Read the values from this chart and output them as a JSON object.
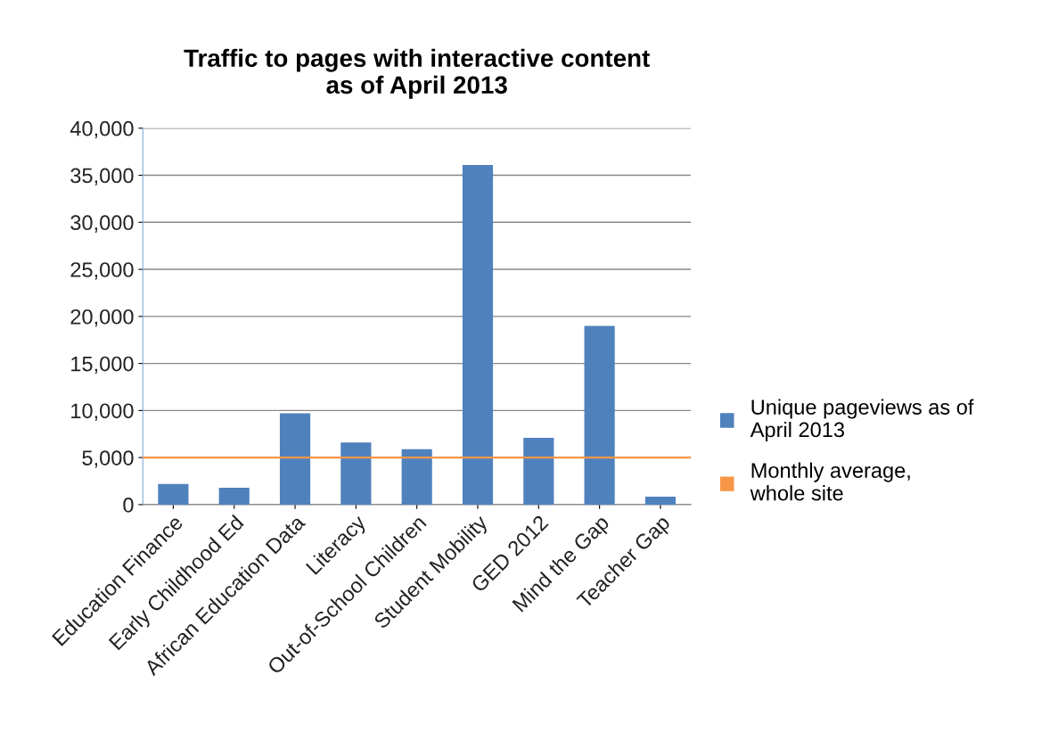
{
  "chart_data": {
    "type": "bar",
    "title": "Traffic to pages with interactive content\nas of April 2013",
    "categories": [
      "Education Finance",
      "Early Childhood Ed",
      "African Education Data",
      "Literacy",
      "Out-of-School Children",
      "Student Mobility",
      "GED 2012",
      "Mind the Gap",
      "Teacher Gap"
    ],
    "series": [
      {
        "name": "Unique pageviews as of\nApril 2013",
        "color": "#4f81bd",
        "values": [
          2200,
          1800,
          9700,
          6600,
          5900,
          36100,
          7100,
          19000,
          850
        ]
      }
    ],
    "ref_lines": [
      {
        "axis": "y",
        "value": 5000,
        "label": "Monthly average,\nwhole site",
        "color": "#f79646"
      }
    ],
    "ylim": [
      0,
      40000
    ],
    "yticks": [
      {
        "value": 0,
        "label": "0"
      },
      {
        "value": 5000,
        "label": "5,000"
      },
      {
        "value": 10000,
        "label": "10,000"
      },
      {
        "value": 15000,
        "label": "15,000"
      },
      {
        "value": 20000,
        "label": "20,000"
      },
      {
        "value": 25000,
        "label": "25,000"
      },
      {
        "value": 30000,
        "label": "30,000"
      },
      {
        "value": 35000,
        "label": "35,000"
      },
      {
        "value": 40000,
        "label": "40,000"
      }
    ],
    "grid": "y",
    "legend": "right"
  }
}
